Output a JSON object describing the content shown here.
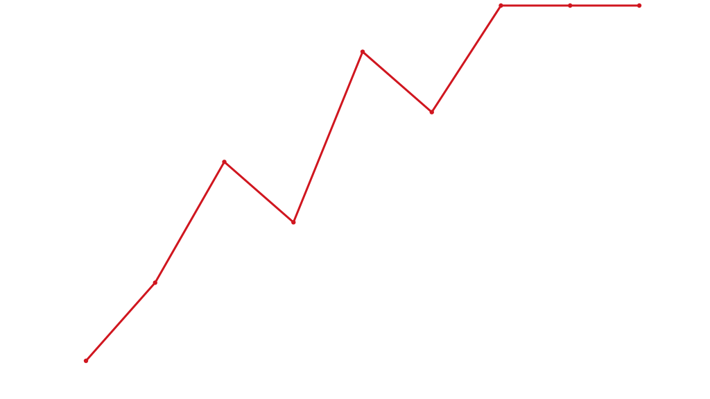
{
  "chart_data": {
    "type": "line",
    "values": [
      0,
      2.2,
      5.6,
      3.9,
      8.7,
      7,
      10,
      10,
      10
    ],
    "color": "#d0161f",
    "ylim": [
      0,
      10
    ]
  }
}
